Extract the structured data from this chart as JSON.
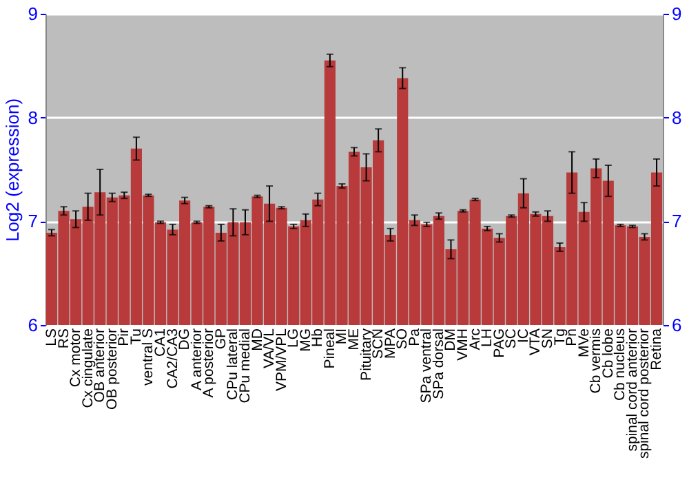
{
  "chart_data": {
    "type": "bar",
    "ylabel": "Log2 (expression)",
    "categories": [
      "LS",
      "RS",
      "Cx motor",
      "Cx cingulate",
      "OB anterior",
      "OB posterior",
      "Pir",
      "Tu",
      "ventral S",
      "CA1",
      "CA2/CA3",
      "DG",
      "A anterior",
      "A posterior",
      "GP",
      "CPu lateral",
      "CPu medial",
      "MD",
      "VA/VL",
      "VPM/VPL",
      "LG",
      "MG",
      "Hb",
      "Pineal",
      "MI",
      "ME",
      "Pituitary",
      "SCN",
      "MPA",
      "SO",
      "Pa",
      "SPa ventral",
      "SPa dorsal",
      "DM",
      "VMH",
      "Arc",
      "LH",
      "PAG",
      "SC",
      "IC",
      "VTA",
      "SN",
      "Tg",
      "Pn",
      "MVe",
      "Cb vermis",
      "Cb lobe",
      "Cb nucleus",
      "spinal cord anterior",
      "spinal cord posterior",
      "Retina"
    ],
    "values": [
      6.89,
      7.1,
      7.02,
      7.14,
      7.28,
      7.23,
      7.25,
      7.7,
      7.25,
      6.99,
      6.92,
      7.2,
      6.99,
      7.14,
      6.89,
      6.99,
      6.99,
      7.24,
      7.17,
      7.13,
      6.95,
      7.01,
      7.21,
      8.55,
      7.34,
      7.67,
      7.52,
      7.78,
      6.87,
      8.38,
      7.01,
      6.97,
      7.05,
      6.73,
      7.1,
      7.21,
      6.93,
      6.84,
      7.05,
      7.27,
      7.07,
      7.05,
      6.75,
      7.47,
      7.09,
      7.51,
      7.39,
      6.96,
      6.95,
      6.85,
      7.47
    ],
    "errors": [
      0.03,
      0.04,
      0.08,
      0.13,
      0.22,
      0.04,
      0.03,
      0.11,
      0.01,
      0.01,
      0.05,
      0.03,
      0.01,
      0.01,
      0.08,
      0.13,
      0.12,
      0.01,
      0.17,
      0.01,
      0.02,
      0.06,
      0.06,
      0.06,
      0.02,
      0.04,
      0.13,
      0.11,
      0.06,
      0.1,
      0.05,
      0.02,
      0.03,
      0.09,
      0.01,
      0.01,
      0.02,
      0.04,
      0.01,
      0.14,
      0.02,
      0.05,
      0.04,
      0.2,
      0.09,
      0.09,
      0.15,
      0.01,
      0.01,
      0.03,
      0.13
    ],
    "color": "#b83a3a",
    "ylim": [
      6,
      9
    ],
    "yticks": [
      6,
      7,
      8,
      9
    ],
    "y2lim": [
      6,
      9
    ],
    "y2ticks": [
      6,
      7,
      8,
      9
    ],
    "grid": "y"
  }
}
